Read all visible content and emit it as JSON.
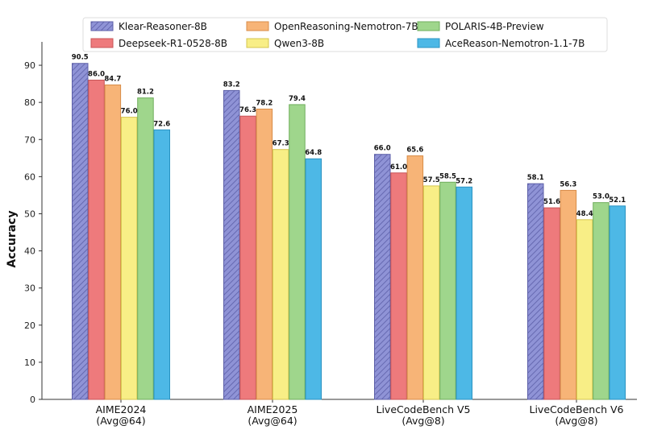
{
  "chart_data": {
    "type": "bar",
    "ylabel": "Accuracy",
    "xlabel": "",
    "ylim": [
      0,
      95
    ],
    "yticks": [
      0,
      10,
      20,
      30,
      40,
      50,
      60,
      70,
      80,
      90
    ],
    "grid": false,
    "legend_position": "top",
    "categories": [
      [
        "AIME2024",
        "(Avg@64)"
      ],
      [
        "AIME2025",
        "(Avg@64)"
      ],
      [
        "LiveCodeBench V5",
        "(Avg@8)"
      ],
      [
        "LiveCodeBench V6",
        "(Avg@8)"
      ]
    ],
    "series": [
      {
        "name": "Klear-Reasoner-8B",
        "color": "#8f93d6",
        "stroke": "#5c5fa8",
        "hatch": true,
        "values": [
          90.5,
          83.2,
          66.0,
          58.1
        ]
      },
      {
        "name": "Deepseek-R1-0528-8B",
        "color": "#ee7a7c",
        "stroke": "#c85457",
        "hatch": false,
        "values": [
          86.0,
          76.3,
          61.0,
          51.6
        ]
      },
      {
        "name": "OpenReasoning-Nemotron-7B",
        "color": "#f7b477",
        "stroke": "#d88c48",
        "hatch": false,
        "values": [
          84.7,
          78.2,
          65.6,
          56.3
        ]
      },
      {
        "name": "Qwen3-8B",
        "color": "#f8ee86",
        "stroke": "#d4c54f",
        "hatch": false,
        "values": [
          76.0,
          67.3,
          57.5,
          48.4
        ]
      },
      {
        "name": "POLARIS-4B-Preview",
        "color": "#9fd68c",
        "stroke": "#6fae5c",
        "hatch": false,
        "values": [
          81.2,
          79.4,
          58.5,
          53.0
        ]
      },
      {
        "name": "AceReason-Nemotron-1.1-7B",
        "color": "#4db8e6",
        "stroke": "#2a93c2",
        "hatch": false,
        "values": [
          72.6,
          64.8,
          57.2,
          52.1
        ]
      }
    ]
  }
}
